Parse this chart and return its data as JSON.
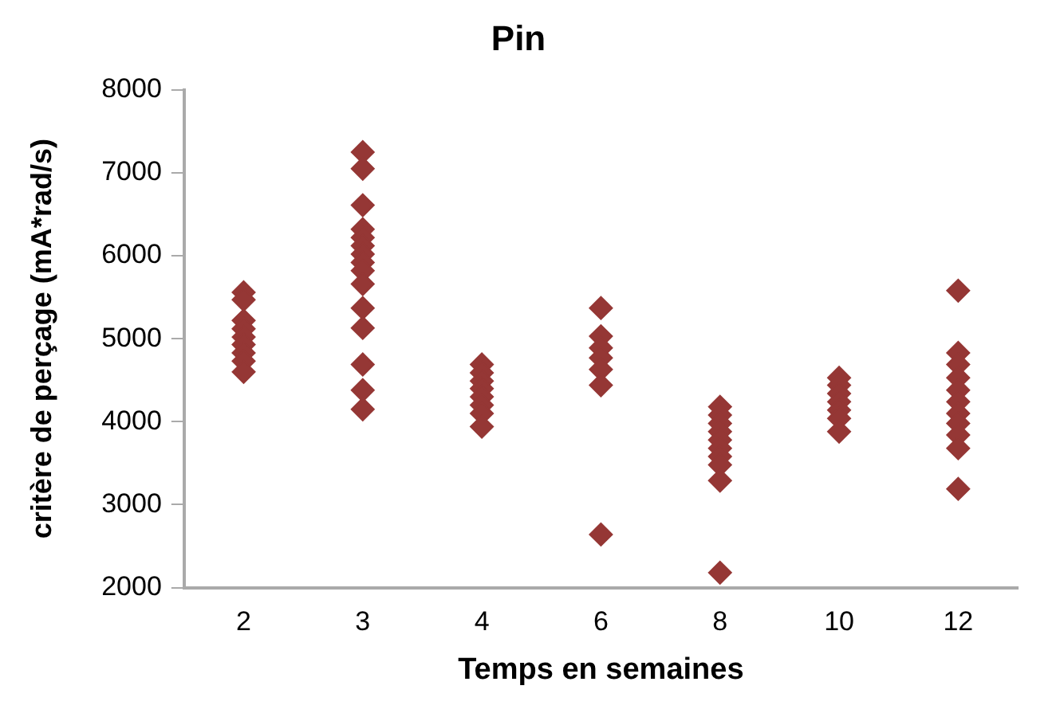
{
  "chart_data": {
    "type": "scatter",
    "title": "Pin",
    "xlabel": "Temps en semaines",
    "ylabel": "critère de perçage (mA*rad/s)",
    "categories": [
      "2",
      "3",
      "4",
      "6",
      "8",
      "10",
      "12"
    ],
    "series": [
      {
        "color": "#953735",
        "x": [
          "2",
          "2",
          "2",
          "2",
          "2",
          "2",
          "2",
          "2",
          "2",
          "3",
          "3",
          "3",
          "3",
          "3",
          "3",
          "3",
          "3",
          "3",
          "3",
          "3",
          "3",
          "3",
          "3",
          "3",
          "4",
          "4",
          "4",
          "4",
          "4",
          "4",
          "4",
          "4",
          "6",
          "6",
          "6",
          "6",
          "6",
          "6",
          "6",
          "8",
          "8",
          "8",
          "8",
          "8",
          "8",
          "8",
          "8",
          "8",
          "8",
          "10",
          "10",
          "10",
          "10",
          "10",
          "10",
          "10",
          "12",
          "12",
          "12",
          "12",
          "12",
          "12",
          "12",
          "12",
          "12",
          "12",
          "12"
        ],
        "values": [
          5560,
          5470,
          5220,
          5120,
          5020,
          4930,
          4830,
          4730,
          4600,
          7250,
          7050,
          6610,
          6320,
          6220,
          6120,
          6020,
          5920,
          5820,
          5660,
          5370,
          5130,
          4690,
          4380,
          4150,
          4690,
          4590,
          4490,
          4400,
          4300,
          4200,
          4100,
          3940,
          5370,
          5030,
          4890,
          4770,
          4630,
          4440,
          2640,
          4180,
          4080,
          3980,
          3880,
          3780,
          3680,
          3580,
          3480,
          3290,
          2180,
          4530,
          4440,
          4340,
          4240,
          4140,
          4040,
          3880,
          5580,
          4830,
          4690,
          4530,
          4380,
          4240,
          4100,
          3980,
          3840,
          3680,
          3190
        ]
      }
    ],
    "ylim": [
      2000,
      8000
    ],
    "yticks": [
      2000,
      3000,
      4000,
      5000,
      6000,
      7000,
      8000
    ],
    "grid": false,
    "legend": false,
    "marker": "diamond"
  }
}
